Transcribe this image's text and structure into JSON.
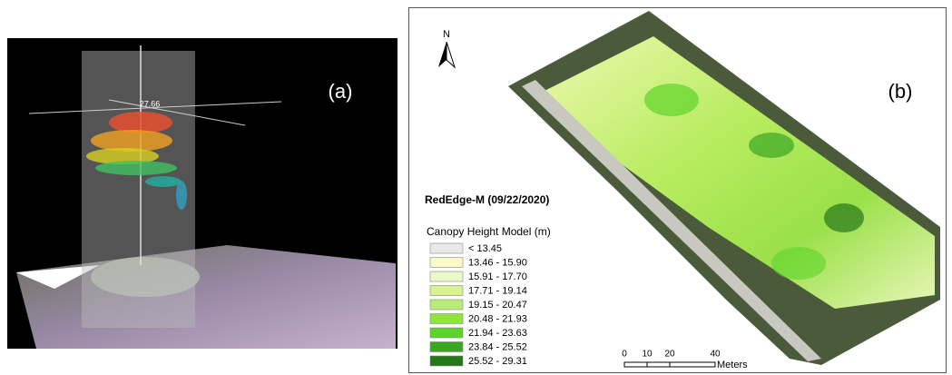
{
  "panel_a": {
    "label": "(a)",
    "height_marker": "27.66"
  },
  "panel_b": {
    "label": "(b)",
    "north": "N",
    "title": "RedEdge-M (09/22/2020)",
    "legend": {
      "title": "Canopy Height Model (m)",
      "items": [
        {
          "label": "< 13.45",
          "color": "#e8e8e8"
        },
        {
          "label": "13.46 - 15.90",
          "color": "#fafac8"
        },
        {
          "label": "15.91 - 17.70",
          "color": "#eaf8c8"
        },
        {
          "label": "17.71 - 19.14",
          "color": "#d8f290"
        },
        {
          "label": "19.15 - 20.47",
          "color": "#b8ec78"
        },
        {
          "label": "20.48 - 21.93",
          "color": "#8ee63a"
        },
        {
          "label": "21.94 - 23.63",
          "color": "#5ed42a"
        },
        {
          "label": "23.84 - 25.52",
          "color": "#3aa622"
        },
        {
          "label": "25.52 - 29.31",
          "color": "#26761a"
        }
      ]
    },
    "scale_bar": {
      "labels": [
        "0",
        "10",
        "20",
        "40"
      ],
      "unit": "Meters"
    }
  }
}
